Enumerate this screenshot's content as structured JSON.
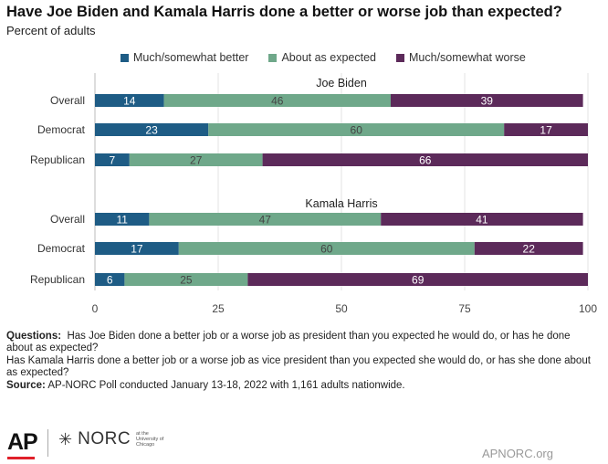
{
  "title": "Have Joe Biden and Kamala Harris done a better or worse job than expected?",
  "subtitle": "Percent of adults",
  "colors": {
    "better": "#1e5c85",
    "expected": "#6fa88a",
    "worse": "#5c2a5a",
    "axis": "#bbbbbb",
    "grid": "#e3e3e3"
  },
  "chart_data": {
    "type": "bar",
    "orientation": "horizontal",
    "stacked": true,
    "xlim": [
      0,
      100
    ],
    "xticks": [
      0,
      25,
      50,
      75,
      100
    ],
    "legend_position": "top",
    "series": [
      {
        "name": "Much/somewhat better",
        "color": "#1e5c85"
      },
      {
        "name": "About as expected",
        "color": "#6fa88a"
      },
      {
        "name": "Much/somewhat worse",
        "color": "#5c2a5a"
      }
    ],
    "panels": [
      {
        "title": "Joe Biden",
        "rows": [
          {
            "label": "Overall",
            "values": [
              14,
              46,
              39
            ]
          },
          {
            "label": "Democrat",
            "values": [
              23,
              60,
              17
            ]
          },
          {
            "label": "Republican",
            "values": [
              7,
              27,
              66
            ]
          }
        ]
      },
      {
        "title": "Kamala Harris",
        "rows": [
          {
            "label": "Overall",
            "values": [
              11,
              47,
              41
            ]
          },
          {
            "label": "Democrat",
            "values": [
              17,
              60,
              22
            ]
          },
          {
            "label": "Republican",
            "values": [
              6,
              25,
              69
            ]
          }
        ]
      }
    ]
  },
  "notes": {
    "questions_label": "Questions:",
    "question_1": "Has Joe Biden done a better job or a worse job as president than you expected he would do, or has he done about as expected?",
    "question_2": "Has Kamala Harris done a better job or a worse job as vice president than you expected she would do, or has she done about as expected?",
    "source_label": "Source:",
    "source": "AP-NORC Poll conducted January 13-18, 2022 with 1,161 adults nationwide."
  },
  "footer": {
    "ap_logo": "AP",
    "norc_logo": "NORC",
    "norc_small": "at the University of Chicago",
    "site": "APNORC.org"
  }
}
